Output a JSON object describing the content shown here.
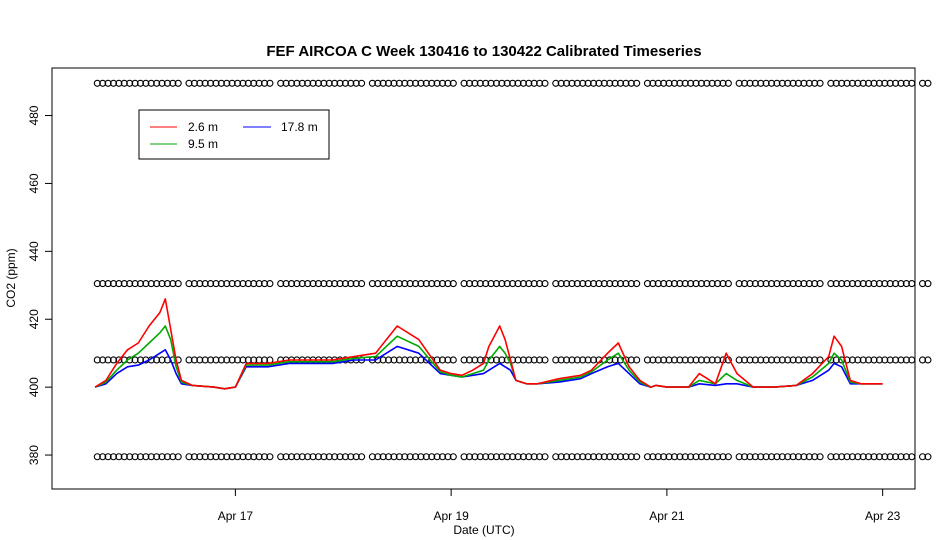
{
  "chart_data": {
    "type": "line",
    "title": "FEF AIRCOA C  Week 130416 to 130422  Calibrated Timeseries",
    "xlabel": "Date (UTC)",
    "ylabel": "CO2 (ppm)",
    "xlim": [
      15.3,
      23.3
    ],
    "ylim": [
      370,
      494
    ],
    "x_ticks": [
      {
        "value": 17,
        "label": "Apr 17"
      },
      {
        "value": 19,
        "label": "Apr 19"
      },
      {
        "value": 21,
        "label": "Apr 21"
      },
      {
        "value": 23,
        "label": "Apr 23"
      }
    ],
    "y_ticks": [
      {
        "value": 380,
        "label": "380"
      },
      {
        "value": 400,
        "label": "400"
      },
      {
        "value": 420,
        "label": "420"
      },
      {
        "value": 440,
        "label": "440"
      },
      {
        "value": 460,
        "label": "460"
      },
      {
        "value": 480,
        "label": "480"
      }
    ],
    "legend_position": "top-left",
    "legend": [
      {
        "label": "2.6 m",
        "color": "#ff0000"
      },
      {
        "label": "9.5 m",
        "color": "#00aa00"
      },
      {
        "label": "17.8 m",
        "color": "#0000ff"
      }
    ],
    "series": [
      {
        "name": "17.8 m",
        "color": "#0000ff",
        "x": [
          15.7,
          15.8,
          15.9,
          16.0,
          16.1,
          16.2,
          16.3,
          16.35,
          16.4,
          16.45,
          16.5,
          16.6,
          16.8,
          16.9,
          17.0,
          17.1,
          17.3,
          17.5,
          17.7,
          17.9,
          18.1,
          18.3,
          18.5,
          18.7,
          18.9,
          19.0,
          19.1,
          19.2,
          19.3,
          19.35,
          19.4,
          19.45,
          19.5,
          19.55,
          19.6,
          19.65,
          19.7,
          19.8,
          20.0,
          20.2,
          20.3,
          20.45,
          20.55,
          20.65,
          20.75,
          20.85,
          20.9,
          21.0,
          21.2,
          21.3,
          21.45,
          21.55,
          21.65,
          21.8,
          22.0,
          22.2,
          22.35,
          22.5,
          22.55,
          22.62,
          22.7,
          22.8,
          23.0
        ],
        "values": [
          400,
          401,
          404,
          406,
          406.5,
          408,
          410,
          411,
          408,
          404,
          401,
          400.5,
          400,
          399.5,
          400,
          406,
          406,
          407,
          407,
          407,
          408,
          408,
          412,
          410,
          404,
          403.5,
          403,
          403.5,
          404,
          405,
          406,
          407,
          406,
          405,
          402,
          401.5,
          401,
          401,
          401.5,
          402.5,
          404,
          406,
          407,
          404,
          401,
          400,
          400.5,
          400,
          400,
          401,
          400.5,
          401,
          401,
          400,
          400,
          400.5,
          402,
          405,
          407,
          406,
          401,
          401,
          401
        ]
      },
      {
        "name": "9.5 m",
        "color": "#00aa00",
        "x": [
          15.7,
          15.8,
          15.9,
          16.0,
          16.1,
          16.2,
          16.3,
          16.35,
          16.4,
          16.45,
          16.5,
          16.6,
          16.8,
          16.9,
          17.0,
          17.1,
          17.3,
          17.5,
          17.7,
          17.9,
          18.1,
          18.3,
          18.5,
          18.7,
          18.9,
          19.0,
          19.1,
          19.2,
          19.3,
          19.35,
          19.4,
          19.45,
          19.5,
          19.55,
          19.6,
          19.65,
          19.7,
          19.8,
          20.0,
          20.2,
          20.3,
          20.45,
          20.55,
          20.65,
          20.75,
          20.85,
          20.9,
          21.0,
          21.2,
          21.3,
          21.45,
          21.55,
          21.65,
          21.8,
          22.0,
          22.2,
          22.35,
          22.5,
          22.55,
          22.62,
          22.7,
          22.8,
          23.0
        ],
        "values": [
          400,
          401.5,
          405,
          408,
          410,
          413,
          416,
          418,
          414,
          406,
          401.5,
          400.5,
          400,
          399.5,
          400,
          406.5,
          406.5,
          407.5,
          407.5,
          407.5,
          408.5,
          409,
          415,
          412,
          404.5,
          403.5,
          403,
          404,
          405,
          408,
          410,
          412,
          410,
          407,
          402,
          401.5,
          401,
          401,
          402,
          403,
          404.5,
          408,
          410,
          405,
          401.5,
          400,
          400.5,
          400,
          400,
          402,
          401,
          404,
          402,
          400,
          400,
          400.5,
          403,
          407,
          410,
          408,
          401.5,
          401,
          401
        ]
      },
      {
        "name": "2.6 m",
        "color": "#ff0000",
        "x": [
          15.7,
          15.8,
          15.9,
          16.0,
          16.1,
          16.2,
          16.3,
          16.35,
          16.4,
          16.45,
          16.5,
          16.6,
          16.8,
          16.9,
          17.0,
          17.1,
          17.3,
          17.5,
          17.7,
          17.9,
          18.1,
          18.3,
          18.5,
          18.7,
          18.9,
          19.0,
          19.1,
          19.2,
          19.3,
          19.35,
          19.4,
          19.45,
          19.5,
          19.55,
          19.6,
          19.65,
          19.7,
          19.8,
          20.0,
          20.2,
          20.3,
          20.45,
          20.55,
          20.65,
          20.75,
          20.85,
          20.9,
          21.0,
          21.2,
          21.3,
          21.45,
          21.55,
          21.65,
          21.8,
          22.0,
          22.2,
          22.35,
          22.5,
          22.55,
          22.62,
          22.7,
          22.8,
          23.0
        ],
        "values": [
          400,
          402,
          407,
          411,
          413,
          418,
          422,
          426,
          417,
          408,
          402,
          400.5,
          400,
          399.5,
          400,
          407,
          407,
          408,
          408,
          408,
          409,
          410,
          418,
          414,
          405,
          404,
          403.5,
          405,
          407,
          412,
          415,
          418,
          414,
          408,
          402,
          401.5,
          401,
          401,
          402.5,
          403.5,
          405,
          410,
          413,
          406,
          402,
          400,
          400.5,
          400,
          400,
          404,
          401,
          410,
          404,
          400,
          400,
          400.5,
          404,
          409,
          415,
          412,
          402,
          401,
          401
        ]
      }
    ],
    "calibration_markers": {
      "symbol": "o",
      "levels": [
        489.5,
        430.5,
        408,
        379.5
      ],
      "x_start": 15.3,
      "x_end": 23.0,
      "spacing": 0.05
    }
  }
}
